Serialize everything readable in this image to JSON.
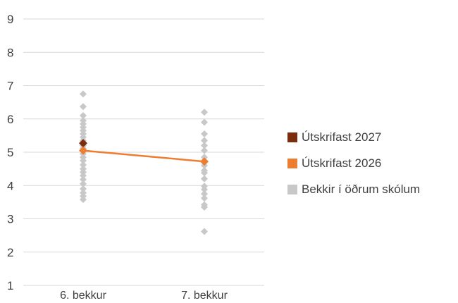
{
  "chart_data": {
    "type": "scatter",
    "categories": [
      "6. bekkur",
      "7. bekkur"
    ],
    "ylim": [
      1,
      9
    ],
    "yticks": [
      "1",
      "2",
      "3",
      "4",
      "5",
      "6",
      "7",
      "8",
      "9"
    ],
    "grid": true,
    "legend_position": "right",
    "series": [
      {
        "name": "Útskrifast 2027",
        "color": "#7a2e0e",
        "marker": "diamond",
        "line": false,
        "values": [
          5.27,
          null
        ]
      },
      {
        "name": "Útskrifast 2026",
        "color": "#ed7d31",
        "marker": "diamond",
        "line": true,
        "values": [
          5.05,
          4.72
        ]
      },
      {
        "name": "Bekkir í öðrum skólum",
        "color": "#c8c8c8",
        "marker": "diamond",
        "line": false,
        "points": [
          {
            "x": "6. bekkur",
            "y": 6.75
          },
          {
            "x": "6. bekkur",
            "y": 6.37
          },
          {
            "x": "6. bekkur",
            "y": 6.1
          },
          {
            "x": "6. bekkur",
            "y": 5.95
          },
          {
            "x": "6. bekkur",
            "y": 5.85
          },
          {
            "x": "6. bekkur",
            "y": 5.75
          },
          {
            "x": "6. bekkur",
            "y": 5.65
          },
          {
            "x": "6. bekkur",
            "y": 5.55
          },
          {
            "x": "6. bekkur",
            "y": 5.45
          },
          {
            "x": "6. bekkur",
            "y": 5.35
          },
          {
            "x": "6. bekkur",
            "y": 5.2
          },
          {
            "x": "6. bekkur",
            "y": 5.12
          },
          {
            "x": "6. bekkur",
            "y": 4.95
          },
          {
            "x": "6. bekkur",
            "y": 4.85
          },
          {
            "x": "6. bekkur",
            "y": 4.75
          },
          {
            "x": "6. bekkur",
            "y": 4.62
          },
          {
            "x": "6. bekkur",
            "y": 4.5
          },
          {
            "x": "6. bekkur",
            "y": 4.4
          },
          {
            "x": "6. bekkur",
            "y": 4.3
          },
          {
            "x": "6. bekkur",
            "y": 4.18
          },
          {
            "x": "6. bekkur",
            "y": 4.05
          },
          {
            "x": "6. bekkur",
            "y": 3.9
          },
          {
            "x": "6. bekkur",
            "y": 3.78
          },
          {
            "x": "6. bekkur",
            "y": 3.68
          },
          {
            "x": "6. bekkur",
            "y": 3.58
          },
          {
            "x": "7. bekkur",
            "y": 6.2
          },
          {
            "x": "7. bekkur",
            "y": 5.9
          },
          {
            "x": "7. bekkur",
            "y": 5.55
          },
          {
            "x": "7. bekkur",
            "y": 5.35
          },
          {
            "x": "7. bekkur",
            "y": 5.2
          },
          {
            "x": "7. bekkur",
            "y": 5.05
          },
          {
            "x": "7. bekkur",
            "y": 4.85
          },
          {
            "x": "7. bekkur",
            "y": 4.6
          },
          {
            "x": "7. bekkur",
            "y": 4.45
          },
          {
            "x": "7. bekkur",
            "y": 4.38
          },
          {
            "x": "7. bekkur",
            "y": 4.2
          },
          {
            "x": "7. bekkur",
            "y": 3.98
          },
          {
            "x": "7. bekkur",
            "y": 3.88
          },
          {
            "x": "7. bekkur",
            "y": 3.75
          },
          {
            "x": "7. bekkur",
            "y": 3.62
          },
          {
            "x": "7. bekkur",
            "y": 3.42
          },
          {
            "x": "7. bekkur",
            "y": 3.35
          },
          {
            "x": "7. bekkur",
            "y": 2.62
          }
        ]
      }
    ]
  }
}
